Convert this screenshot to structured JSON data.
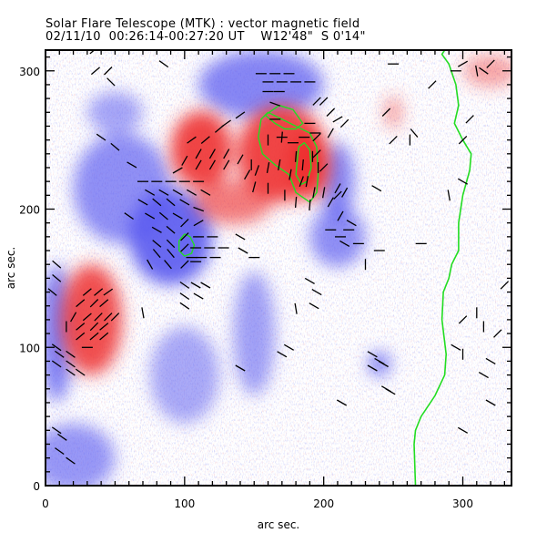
{
  "header": {
    "title": "Solar Flare Telescope (MTK) : vector magnetic field",
    "subtitle": "02/11/10  00:26:14-00:27:20 UT    W12'48\"  S 0'14\""
  },
  "chart_data": {
    "type": "heatmap",
    "title": "Solar Flare Telescope (MTK) : vector magnetic field",
    "xlabel": "arc sec.",
    "ylabel": "arc sec.",
    "xlim": [
      0,
      335
    ],
    "ylim": [
      0,
      315
    ],
    "x_ticks": [
      "0",
      "100",
      "200",
      "300"
    ],
    "y_ticks": [
      "0",
      "100",
      "200",
      "300"
    ],
    "x_tick_values": [
      0,
      100,
      200,
      300
    ],
    "y_tick_values": [
      0,
      100,
      200,
      300
    ],
    "colors": {
      "positive": "#ee3030",
      "negative": "#3030ee",
      "contour": "#22dd22",
      "vector": "#000000"
    },
    "positive_regions": [
      {
        "cx": 33,
        "cy": 120,
        "rx": 22,
        "ry": 40,
        "strength": 0.9
      },
      {
        "cx": 112,
        "cy": 243,
        "rx": 22,
        "ry": 28,
        "strength": 1.0
      },
      {
        "cx": 170,
        "cy": 240,
        "rx": 32,
        "ry": 35,
        "strength": 1.0
      },
      {
        "cx": 190,
        "cy": 232,
        "rx": 15,
        "ry": 25,
        "strength": 1.0
      },
      {
        "cx": 135,
        "cy": 205,
        "rx": 28,
        "ry": 16,
        "strength": 0.55
      },
      {
        "cx": 250,
        "cy": 270,
        "rx": 6,
        "ry": 12,
        "strength": 0.3
      },
      {
        "cx": 320,
        "cy": 300,
        "rx": 20,
        "ry": 12,
        "strength": 0.2
      }
    ],
    "negative_regions": [
      {
        "cx": 90,
        "cy": 180,
        "rx": 30,
        "ry": 35,
        "strength": 1.0
      },
      {
        "cx": 55,
        "cy": 215,
        "rx": 35,
        "ry": 40,
        "strength": 0.6
      },
      {
        "cx": 8,
        "cy": 110,
        "rx": 12,
        "ry": 50,
        "strength": 0.75
      },
      {
        "cx": 155,
        "cy": 290,
        "rx": 45,
        "ry": 25,
        "strength": 0.7
      },
      {
        "cx": 210,
        "cy": 220,
        "rx": 12,
        "ry": 28,
        "strength": 0.7
      },
      {
        "cx": 210,
        "cy": 180,
        "rx": 20,
        "ry": 22,
        "strength": 0.6
      },
      {
        "cx": 240,
        "cy": 88,
        "rx": 8,
        "ry": 9,
        "strength": 0.8
      },
      {
        "cx": 150,
        "cy": 110,
        "rx": 15,
        "ry": 45,
        "strength": 0.4
      },
      {
        "cx": 100,
        "cy": 80,
        "rx": 25,
        "ry": 35,
        "strength": 0.3
      },
      {
        "cx": 20,
        "cy": 20,
        "rx": 30,
        "ry": 25,
        "strength": 0.5
      },
      {
        "cx": 50,
        "cy": 270,
        "rx": 20,
        "ry": 15,
        "strength": 0.35
      }
    ],
    "limb_contour": [
      [
        287,
        315
      ],
      [
        285,
        312
      ],
      [
        290,
        305
      ],
      [
        295,
        290
      ],
      [
        297,
        275
      ],
      [
        294,
        262
      ],
      [
        300,
        250
      ],
      [
        306,
        240
      ],
      [
        305,
        228
      ],
      [
        300,
        210
      ],
      [
        297,
        190
      ],
      [
        297,
        170
      ],
      [
        292,
        160
      ],
      [
        290,
        150
      ],
      [
        286,
        140
      ],
      [
        285,
        120
      ],
      [
        288,
        95
      ],
      [
        287,
        80
      ],
      [
        280,
        65
      ],
      [
        270,
        50
      ],
      [
        266,
        40
      ],
      [
        265,
        30
      ],
      [
        266,
        0
      ]
    ],
    "contours": [
      [
        [
          160,
          270
        ],
        [
          155,
          265
        ],
        [
          153,
          252
        ],
        [
          156,
          240
        ],
        [
          165,
          232
        ],
        [
          175,
          225
        ],
        [
          180,
          212
        ],
        [
          190,
          205
        ],
        [
          195,
          212
        ],
        [
          196,
          225
        ],
        [
          195,
          245
        ],
        [
          190,
          255
        ],
        [
          180,
          260
        ],
        [
          170,
          265
        ],
        [
          160,
          270
        ]
      ],
      [
        [
          182,
          245
        ],
        [
          186,
          248
        ],
        [
          190,
          243
        ],
        [
          191,
          230
        ],
        [
          188,
          220
        ],
        [
          184,
          218
        ],
        [
          180,
          225
        ],
        [
          181,
          235
        ],
        [
          182,
          245
        ]
      ],
      [
        [
          100,
          182
        ],
        [
          104,
          180
        ],
        [
          107,
          174
        ],
        [
          105,
          168
        ],
        [
          100,
          166
        ],
        [
          96,
          170
        ],
        [
          96,
          177
        ],
        [
          100,
          182
        ]
      ],
      [
        [
          158,
          268
        ],
        [
          165,
          262
        ],
        [
          172,
          258
        ],
        [
          180,
          258
        ],
        [
          185,
          262
        ],
        [
          178,
          272
        ],
        [
          168,
          275
        ],
        [
          158,
          268
        ]
      ]
    ],
    "vectors": [
      [
        35,
        315,
        40
      ],
      [
        36,
        300,
        40
      ],
      [
        45,
        300,
        45
      ],
      [
        47,
        292,
        135
      ],
      [
        155,
        298,
        0
      ],
      [
        165,
        298,
        0
      ],
      [
        175,
        298,
        0
      ],
      [
        160,
        292,
        0
      ],
      [
        170,
        292,
        0
      ],
      [
        180,
        292,
        0
      ],
      [
        190,
        292,
        0
      ],
      [
        160,
        285,
        0
      ],
      [
        168,
        285,
        0
      ],
      [
        165,
        276,
        160
      ],
      [
        165,
        265,
        0
      ],
      [
        195,
        278,
        45
      ],
      [
        200,
        278,
        45
      ],
      [
        205,
        270,
        45
      ],
      [
        210,
        265,
        30
      ],
      [
        215,
        262,
        45
      ],
      [
        195,
        252,
        45
      ],
      [
        190,
        262,
        0
      ],
      [
        170,
        252,
        0
      ],
      [
        178,
        248,
        0
      ],
      [
        186,
        252,
        0
      ],
      [
        194,
        255,
        0
      ],
      [
        205,
        255,
        60
      ],
      [
        160,
        250,
        90
      ],
      [
        170,
        252,
        85
      ],
      [
        180,
        238,
        85
      ],
      [
        185,
        232,
        85
      ],
      [
        192,
        238,
        90
      ],
      [
        196,
        230,
        90
      ],
      [
        160,
        230,
        80
      ],
      [
        168,
        232,
        80
      ],
      [
        176,
        225,
        80
      ],
      [
        184,
        220,
        70
      ],
      [
        188,
        220,
        80
      ],
      [
        193,
        212,
        80
      ],
      [
        200,
        212,
        80
      ],
      [
        205,
        205,
        60
      ],
      [
        210,
        215,
        60
      ],
      [
        215,
        212,
        60
      ],
      [
        212,
        195,
        60
      ],
      [
        150,
        216,
        75
      ],
      [
        160,
        215,
        90
      ],
      [
        172,
        210,
        90
      ],
      [
        180,
        205,
        85
      ],
      [
        190,
        203,
        85
      ],
      [
        148,
        232,
        90
      ],
      [
        152,
        228,
        70
      ],
      [
        140,
        236,
        60
      ],
      [
        145,
        225,
        60
      ],
      [
        105,
        250,
        35
      ],
      [
        115,
        250,
        40
      ],
      [
        125,
        258,
        40
      ],
      [
        130,
        240,
        60
      ],
      [
        120,
        240,
        60
      ],
      [
        110,
        240,
        60
      ],
      [
        100,
        235,
        60
      ],
      [
        110,
        232,
        60
      ],
      [
        120,
        232,
        60
      ],
      [
        130,
        232,
        60
      ],
      [
        95,
        228,
        30
      ],
      [
        130,
        262,
        35
      ],
      [
        140,
        268,
        35
      ],
      [
        70,
        220,
        0
      ],
      [
        80,
        220,
        0
      ],
      [
        90,
        220,
        0
      ],
      [
        100,
        220,
        0
      ],
      [
        110,
        220,
        0
      ],
      [
        75,
        212,
        150
      ],
      [
        85,
        212,
        150
      ],
      [
        95,
        212,
        150
      ],
      [
        105,
        212,
        150
      ],
      [
        115,
        212,
        150
      ],
      [
        70,
        205,
        150
      ],
      [
        80,
        205,
        140
      ],
      [
        90,
        205,
        140
      ],
      [
        100,
        205,
        150
      ],
      [
        110,
        200,
        160
      ],
      [
        75,
        195,
        150
      ],
      [
        85,
        195,
        140
      ],
      [
        95,
        195,
        150
      ],
      [
        100,
        190,
        45
      ],
      [
        110,
        190,
        30
      ],
      [
        80,
        185,
        150
      ],
      [
        90,
        185,
        140
      ],
      [
        100,
        180,
        45
      ],
      [
        110,
        180,
        0
      ],
      [
        120,
        180,
        0
      ],
      [
        80,
        175,
        140
      ],
      [
        90,
        175,
        135
      ],
      [
        100,
        172,
        45
      ],
      [
        108,
        172,
        0
      ],
      [
        118,
        172,
        0
      ],
      [
        128,
        172,
        0
      ],
      [
        80,
        168,
        130
      ],
      [
        90,
        168,
        130
      ],
      [
        105,
        165,
        0
      ],
      [
        112,
        165,
        0
      ],
      [
        122,
        165,
        0
      ],
      [
        75,
        160,
        120
      ],
      [
        88,
        160,
        130
      ],
      [
        100,
        160,
        45
      ],
      [
        108,
        162,
        0
      ],
      [
        60,
        195,
        145
      ],
      [
        40,
        252,
        145
      ],
      [
        50,
        245,
        140
      ],
      [
        62,
        232,
        150
      ],
      [
        8,
        160,
        140
      ],
      [
        8,
        150,
        140
      ],
      [
        5,
        140,
        140
      ],
      [
        30,
        140,
        40
      ],
      [
        38,
        140,
        40
      ],
      [
        45,
        140,
        35
      ],
      [
        25,
        132,
        40
      ],
      [
        35,
        132,
        45
      ],
      [
        42,
        132,
        40
      ],
      [
        20,
        122,
        60
      ],
      [
        30,
        122,
        40
      ],
      [
        38,
        122,
        45
      ],
      [
        45,
        122,
        45
      ],
      [
        50,
        122,
        45
      ],
      [
        15,
        115,
        90
      ],
      [
        25,
        115,
        40
      ],
      [
        35,
        115,
        45
      ],
      [
        42,
        115,
        40
      ],
      [
        25,
        108,
        40
      ],
      [
        35,
        108,
        40
      ],
      [
        42,
        108,
        40
      ],
      [
        30,
        100,
        0
      ],
      [
        8,
        100,
        145
      ],
      [
        10,
        95,
        145
      ],
      [
        18,
        95,
        145
      ],
      [
        8,
        88,
        145
      ],
      [
        18,
        88,
        145
      ],
      [
        25,
        82,
        145
      ],
      [
        18,
        82,
        145
      ],
      [
        100,
        145,
        145
      ],
      [
        108,
        145,
        150
      ],
      [
        115,
        145,
        150
      ],
      [
        100,
        137,
        145
      ],
      [
        100,
        130,
        145
      ],
      [
        110,
        137,
        150
      ],
      [
        70,
        125,
        100
      ],
      [
        85,
        305,
        145
      ],
      [
        140,
        180,
        150
      ],
      [
        142,
        170,
        150
      ],
      [
        150,
        165,
        0
      ],
      [
        190,
        148,
        150
      ],
      [
        195,
        140,
        150
      ],
      [
        193,
        130,
        150
      ],
      [
        140,
        85,
        150
      ],
      [
        170,
        95,
        150
      ],
      [
        175,
        100,
        150
      ],
      [
        180,
        128,
        100
      ],
      [
        235,
        95,
        150
      ],
      [
        240,
        90,
        150
      ],
      [
        243,
        88,
        150
      ],
      [
        235,
        85,
        150
      ],
      [
        245,
        70,
        150
      ],
      [
        248,
        68,
        150
      ],
      [
        213,
        60,
        150
      ],
      [
        8,
        40,
        145
      ],
      [
        12,
        35,
        145
      ],
      [
        10,
        25,
        145
      ],
      [
        18,
        18,
        145
      ],
      [
        295,
        300,
        0
      ],
      [
        300,
        305,
        30
      ],
      [
        310,
        300,
        100
      ],
      [
        315,
        300,
        145
      ],
      [
        320,
        305,
        45
      ],
      [
        300,
        250,
        45
      ],
      [
        305,
        265,
        45
      ],
      [
        300,
        220,
        150
      ],
      [
        290,
        210,
        100
      ],
      [
        265,
        255,
        130
      ],
      [
        250,
        305,
        0
      ],
      [
        245,
        270,
        45
      ],
      [
        278,
        290,
        45
      ],
      [
        250,
        250,
        45
      ],
      [
        330,
        145,
        45
      ],
      [
        325,
        110,
        45
      ],
      [
        320,
        90,
        150
      ],
      [
        315,
        80,
        150
      ],
      [
        320,
        60,
        150
      ],
      [
        300,
        95,
        90
      ],
      [
        295,
        100,
        150
      ],
      [
        300,
        40,
        150
      ],
      [
        315,
        115,
        90
      ],
      [
        300,
        120,
        45
      ],
      [
        310,
        125,
        90
      ],
      [
        195,
        240,
        45
      ],
      [
        200,
        230,
        45
      ],
      [
        210,
        210,
        45
      ],
      [
        225,
        175,
        0
      ],
      [
        240,
        170,
        0
      ],
      [
        230,
        160,
        90
      ],
      [
        215,
        175,
        150
      ],
      [
        205,
        185,
        0
      ],
      [
        212,
        180,
        0
      ],
      [
        220,
        190,
        150
      ],
      [
        218,
        185,
        0
      ],
      [
        238,
        215,
        150
      ],
      [
        270,
        175,
        0
      ],
      [
        262,
        250,
        90
      ]
    ]
  }
}
